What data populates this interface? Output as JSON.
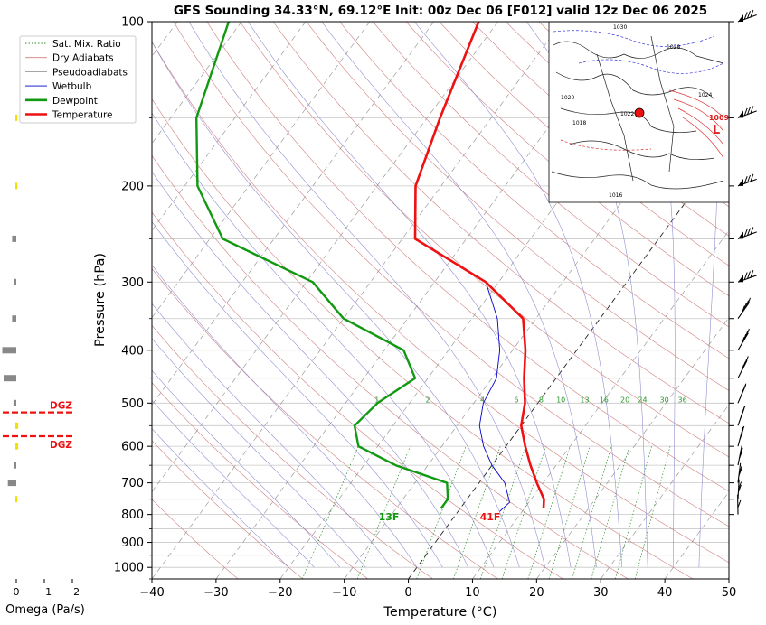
{
  "chart_data": {
    "type": "skew-t",
    "title": "GFS Sounding 34.33°N, 69.12°E Init: 00z Dec 06 [F012] valid 12z Dec 06 2025",
    "xlabel": "Temperature (°C)",
    "ylabel": "Pressure (hPa)",
    "xlim": [
      -40,
      50
    ],
    "ylim": [
      1050,
      100
    ],
    "y_scale": "log",
    "x_ticks": [
      -40,
      -30,
      -20,
      -10,
      0,
      10,
      20,
      30,
      40,
      50
    ],
    "x_tick_labels": [
      "−40",
      "−30",
      "−20",
      "−10",
      "0",
      "10",
      "20",
      "30",
      "40",
      "50"
    ],
    "y_ticks": [
      100,
      200,
      300,
      400,
      500,
      600,
      700,
      800,
      900,
      1000
    ],
    "grid": true,
    "legend": {
      "position": "top-left",
      "entries": [
        {
          "label": "Sat. Mix. Ratio",
          "color": "#2e8b2e",
          "style": "dotted"
        },
        {
          "label": "Dry Adiabats",
          "color": "#d08080",
          "style": "solid"
        },
        {
          "label": "Pseudoadiabats",
          "color": "#9a9a9a",
          "style": "solid"
        },
        {
          "label": "Wetbulb",
          "color": "#0000cc",
          "style": "solid"
        },
        {
          "label": "Dewpoint",
          "color": "#119911",
          "style": "thick"
        },
        {
          "label": "Temperature",
          "color": "#ee1111",
          "style": "thick"
        }
      ]
    },
    "series": [
      {
        "name": "Temperature",
        "color": "#ee1111",
        "points": [
          [
            13,
            780
          ],
          [
            12,
            750
          ],
          [
            9,
            700
          ],
          [
            6,
            650
          ],
          [
            3,
            600
          ],
          [
            0,
            550
          ],
          [
            -2,
            500
          ],
          [
            -5,
            450
          ],
          [
            -8,
            400
          ],
          [
            -12,
            350
          ],
          [
            -22,
            300
          ],
          [
            -38,
            250
          ],
          [
            -44,
            200
          ],
          [
            -48,
            150
          ],
          [
            -53,
            100
          ]
        ]
      },
      {
        "name": "Dewpoint",
        "color": "#119911",
        "points": [
          [
            -3,
            780
          ],
          [
            -3,
            750
          ],
          [
            -5,
            700
          ],
          [
            -15,
            650
          ],
          [
            -23,
            600
          ],
          [
            -26,
            550
          ],
          [
            -25,
            500
          ],
          [
            -22,
            450
          ],
          [
            -27,
            400
          ],
          [
            -40,
            350
          ],
          [
            -49,
            300
          ],
          [
            -68,
            250
          ],
          [
            -78,
            200
          ],
          [
            -86,
            150
          ],
          [
            -92,
            100
          ]
        ]
      },
      {
        "name": "Wetbulb",
        "color": "#0000cc",
        "points": [
          [
            6.5,
            790
          ],
          [
            7,
            760
          ],
          [
            4,
            700
          ],
          [
            0,
            650
          ],
          [
            -3.5,
            600
          ],
          [
            -6.5,
            550
          ],
          [
            -8.5,
            500
          ],
          [
            -9.3,
            450
          ],
          [
            -12,
            400
          ],
          [
            -16,
            350
          ],
          [
            -22,
            300
          ]
        ]
      }
    ],
    "mixing_ratio_labels": [
      "1",
      "2",
      "4",
      "6",
      "8",
      "10",
      "13",
      "16",
      "20",
      "24",
      "30",
      "36"
    ],
    "mixing_ratio_values": [
      1,
      2,
      4,
      6,
      8,
      10,
      13,
      16,
      20,
      24,
      30,
      36
    ],
    "surface_annotations": {
      "dewpoint": "13F",
      "temperature": "41F"
    }
  },
  "omega_panel": {
    "xlabel": "Omega (Pa/s)",
    "x_ticks": [
      "0",
      "−1",
      "−2"
    ],
    "dgz_label": "DGZ",
    "dgz_color": "#ee1111",
    "bars": [
      {
        "p": 150,
        "omega": -0.05,
        "color": "#f2e000"
      },
      {
        "p": 200,
        "omega": -0.05,
        "color": "#f2e000"
      },
      {
        "p": 250,
        "omega": 0.15,
        "color": "#888888"
      },
      {
        "p": 300,
        "omega": 0.05,
        "color": "#888888"
      },
      {
        "p": 350,
        "omega": 0.15,
        "color": "#888888"
      },
      {
        "p": 400,
        "omega": 0.5,
        "color": "#888888"
      },
      {
        "p": 450,
        "omega": 0.45,
        "color": "#888888"
      },
      {
        "p": 500,
        "omega": 0.1,
        "color": "#888888"
      },
      {
        "p": 550,
        "omega": -0.1,
        "color": "#f2e000"
      },
      {
        "p": 600,
        "omega": -0.1,
        "color": "#f2e000"
      },
      {
        "p": 650,
        "omega": 0.05,
        "color": "#888888"
      },
      {
        "p": 700,
        "omega": 0.3,
        "color": "#888888"
      },
      {
        "p": 750,
        "omega": -0.05,
        "color": "#f2e000"
      }
    ],
    "dgz_levels": [
      520,
      575
    ]
  },
  "map_inset": {
    "low_label": "L",
    "pressure_labels": [
      "1009",
      "1020",
      "1018",
      "1016",
      "1024",
      "1030",
      "1022",
      "1028"
    ]
  },
  "wind_barbs": {
    "levels": [
      100,
      150,
      200,
      250,
      300,
      350,
      400,
      450,
      500,
      550,
      600,
      650,
      700,
      750,
      800
    ]
  }
}
